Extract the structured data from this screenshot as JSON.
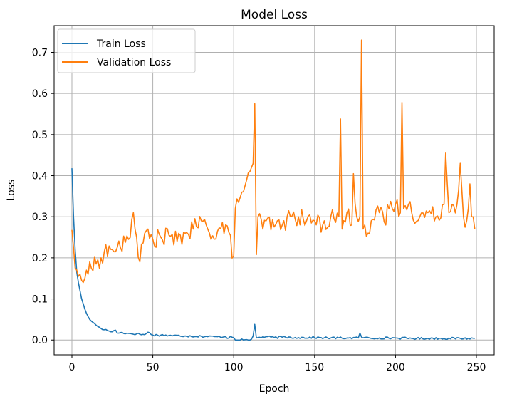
{
  "chart_data": {
    "type": "line",
    "title": "Model Loss",
    "xlabel": "Epoch",
    "ylabel": "Loss",
    "xlim": [
      -11,
      261
    ],
    "ylim": [
      -0.036,
      0.765
    ],
    "xticks": [
      0,
      50,
      100,
      150,
      200,
      250
    ],
    "yticks": [
      0.0,
      0.1,
      0.2,
      0.3,
      0.4,
      0.5,
      0.6,
      0.7
    ],
    "grid": true,
    "legend_position": "top-left",
    "series": [
      {
        "name": "Train Loss",
        "color": "#1f77b4",
        "anchors": [
          [
            0,
            0.418
          ],
          [
            1,
            0.3
          ],
          [
            2,
            0.22
          ],
          [
            3,
            0.165
          ],
          [
            4,
            0.14
          ],
          [
            5,
            0.12
          ],
          [
            6,
            0.1
          ],
          [
            7,
            0.088
          ],
          [
            8,
            0.075
          ],
          [
            9,
            0.065
          ],
          [
            10,
            0.057
          ],
          [
            11,
            0.05
          ],
          [
            12,
            0.046
          ],
          [
            13,
            0.043
          ],
          [
            14,
            0.04
          ],
          [
            15,
            0.036
          ],
          [
            16,
            0.033
          ],
          [
            17,
            0.031
          ],
          [
            18,
            0.028
          ],
          [
            20,
            0.025
          ],
          [
            22,
            0.023
          ],
          [
            25,
            0.02
          ],
          [
            27,
            0.024
          ],
          [
            28,
            0.017
          ],
          [
            30,
            0.018
          ],
          [
            35,
            0.016
          ],
          [
            40,
            0.015
          ],
          [
            45,
            0.013
          ],
          [
            47,
            0.019
          ],
          [
            50,
            0.012
          ],
          [
            55,
            0.012
          ],
          [
            60,
            0.011
          ],
          [
            70,
            0.01
          ],
          [
            80,
            0.009
          ],
          [
            90,
            0.008
          ],
          [
            95,
            0.008
          ],
          [
            96,
            0.004
          ],
          [
            98,
            0.009
          ],
          [
            100,
            0.006
          ],
          [
            101,
            0.0
          ],
          [
            104,
            0.0
          ],
          [
            110,
            0.0
          ],
          [
            111,
            0.002
          ],
          [
            112,
            0.01
          ],
          [
            113,
            0.038
          ],
          [
            114,
            0.005
          ],
          [
            115,
            0.006
          ],
          [
            120,
            0.008
          ],
          [
            125,
            0.006
          ],
          [
            130,
            0.007
          ],
          [
            140,
            0.006
          ],
          [
            150,
            0.006
          ],
          [
            160,
            0.005
          ],
          [
            170,
            0.005
          ],
          [
            177,
            0.005
          ],
          [
            178,
            0.017
          ],
          [
            179,
            0.007
          ],
          [
            185,
            0.004
          ],
          [
            190,
            0.005
          ],
          [
            200,
            0.005
          ],
          [
            210,
            0.004
          ],
          [
            220,
            0.004
          ],
          [
            230,
            0.004
          ],
          [
            240,
            0.004
          ],
          [
            249,
            0.004
          ]
        ],
        "noise": 0.0025,
        "values": []
      },
      {
        "name": "Validation Loss",
        "color": "#ff7f0e",
        "anchors": [
          [
            0,
            0.268
          ],
          [
            1,
            0.225
          ],
          [
            2,
            0.175
          ],
          [
            3,
            0.17
          ],
          [
            4,
            0.155
          ],
          [
            5,
            0.16
          ],
          [
            6,
            0.145
          ],
          [
            7,
            0.14
          ],
          [
            8,
            0.15
          ],
          [
            9,
            0.17
          ],
          [
            10,
            0.16
          ],
          [
            11,
            0.19
          ],
          [
            12,
            0.175
          ],
          [
            15,
            0.185
          ],
          [
            18,
            0.2
          ],
          [
            20,
            0.215
          ],
          [
            25,
            0.22
          ],
          [
            30,
            0.225
          ],
          [
            35,
            0.245
          ],
          [
            38,
            0.31
          ],
          [
            40,
            0.25
          ],
          [
            42,
            0.19
          ],
          [
            45,
            0.26
          ],
          [
            50,
            0.245
          ],
          [
            55,
            0.25
          ],
          [
            60,
            0.255
          ],
          [
            65,
            0.24
          ],
          [
            70,
            0.26
          ],
          [
            75,
            0.27
          ],
          [
            80,
            0.29
          ],
          [
            85,
            0.26
          ],
          [
            90,
            0.265
          ],
          [
            95,
            0.28
          ],
          [
            100,
            0.205
          ],
          [
            101,
            0.32
          ],
          [
            103,
            0.335
          ],
          [
            105,
            0.36
          ],
          [
            108,
            0.39
          ],
          [
            110,
            0.41
          ],
          [
            111,
            0.42
          ],
          [
            112,
            0.43
          ],
          [
            113,
            0.575
          ],
          [
            114,
            0.208
          ],
          [
            115,
            0.3
          ],
          [
            118,
            0.27
          ],
          [
            120,
            0.29
          ],
          [
            125,
            0.275
          ],
          [
            130,
            0.28
          ],
          [
            135,
            0.3
          ],
          [
            140,
            0.3
          ],
          [
            145,
            0.29
          ],
          [
            150,
            0.29
          ],
          [
            155,
            0.28
          ],
          [
            160,
            0.3
          ],
          [
            165,
            0.3
          ],
          [
            166,
            0.538
          ],
          [
            167,
            0.27
          ],
          [
            170,
            0.31
          ],
          [
            173,
            0.28
          ],
          [
            174,
            0.405
          ],
          [
            176,
            0.3
          ],
          [
            178,
            0.3
          ],
          [
            179,
            0.73
          ],
          [
            180,
            0.27
          ],
          [
            181,
            0.28
          ],
          [
            183,
            0.26
          ],
          [
            185,
            0.29
          ],
          [
            190,
            0.31
          ],
          [
            194,
            0.28
          ],
          [
            195,
            0.33
          ],
          [
            198,
            0.32
          ],
          [
            200,
            0.33
          ],
          [
            203,
            0.31
          ],
          [
            204,
            0.578
          ],
          [
            205,
            0.32
          ],
          [
            208,
            0.33
          ],
          [
            210,
            0.31
          ],
          [
            215,
            0.3
          ],
          [
            220,
            0.31
          ],
          [
            225,
            0.3
          ],
          [
            230,
            0.33
          ],
          [
            231,
            0.455
          ],
          [
            233,
            0.31
          ],
          [
            235,
            0.33
          ],
          [
            238,
            0.33
          ],
          [
            240,
            0.43
          ],
          [
            242,
            0.3
          ],
          [
            244,
            0.29
          ],
          [
            246,
            0.38
          ],
          [
            247,
            0.3
          ],
          [
            249,
            0.27
          ]
        ],
        "noise": 0.022,
        "values": []
      }
    ]
  }
}
